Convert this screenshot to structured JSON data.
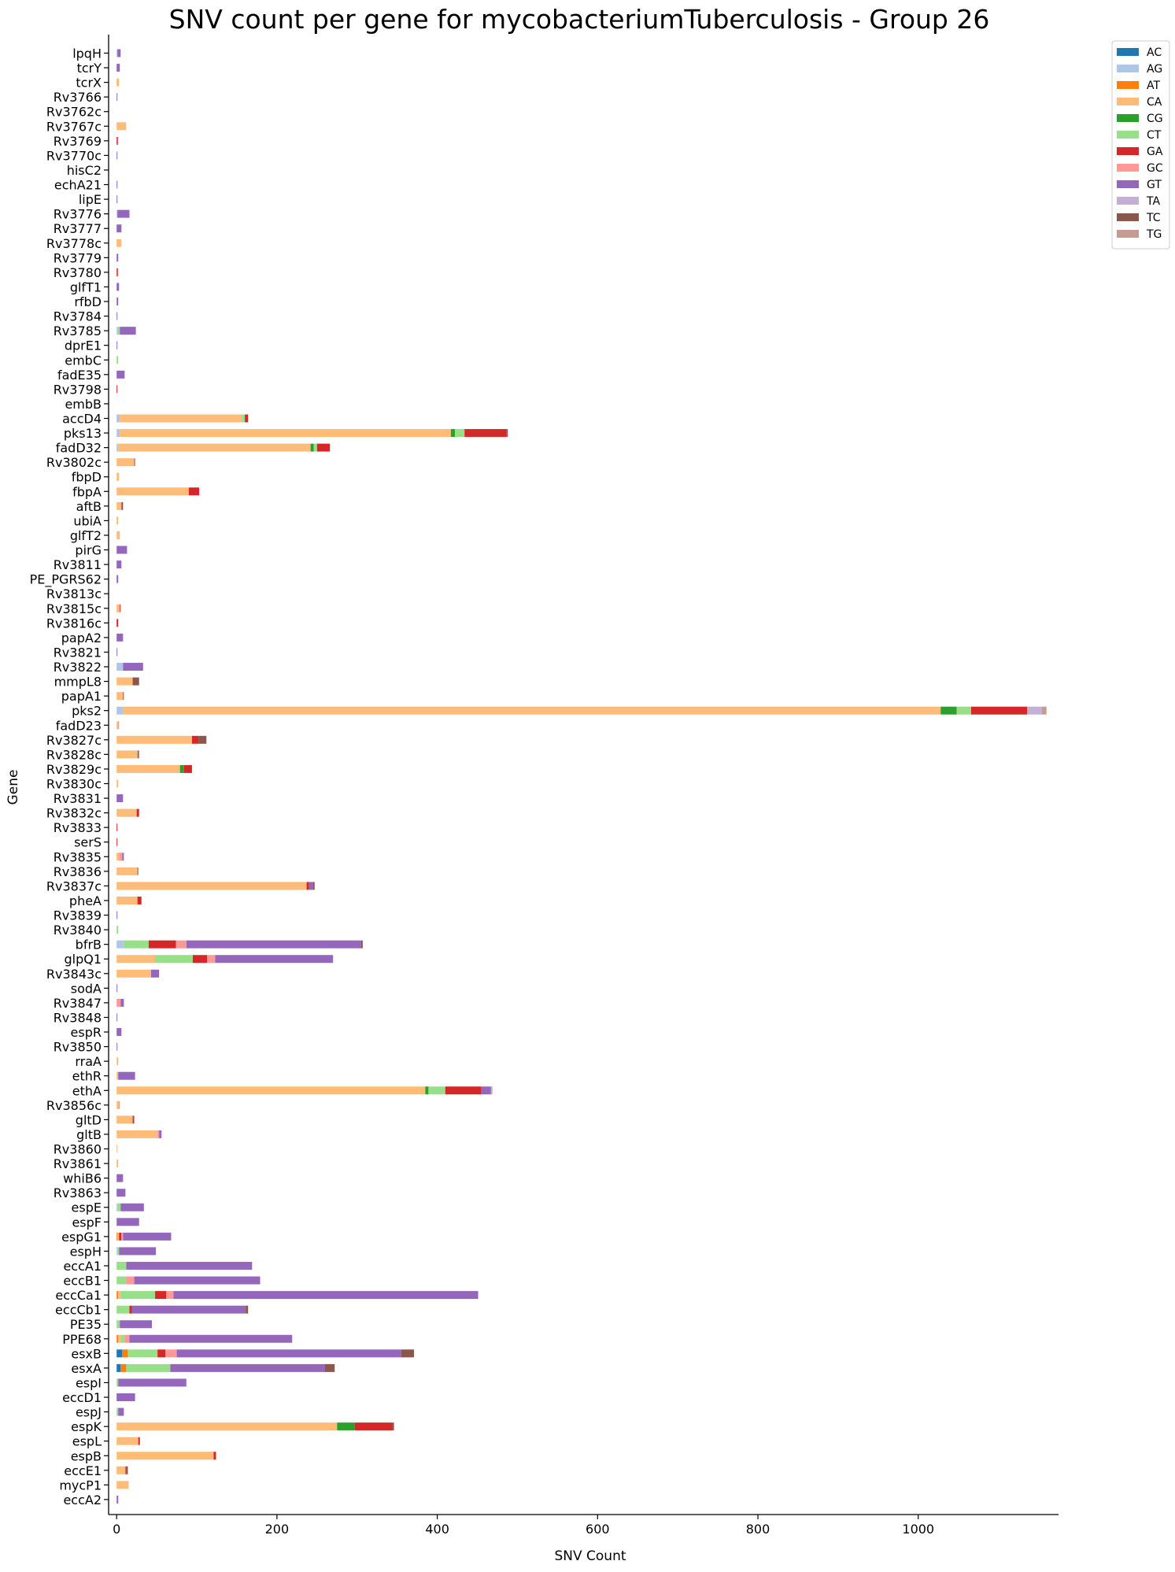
{
  "chart_data": {
    "type": "bar",
    "orientation": "horizontal",
    "stacked": true,
    "title": "SNV count per gene for mycobacteriumTuberculosis - Group 26",
    "xlabel": "SNV Count",
    "ylabel": "Gene",
    "xlim": [
      -10,
      1175
    ],
    "xticks": [
      0,
      200,
      400,
      600,
      800,
      1000
    ],
    "grid": false,
    "legend_position": "top-right-outside",
    "categories": [
      "lpqH",
      "tcrY",
      "tcrX",
      "Rv3766",
      "Rv3762c",
      "Rv3767c",
      "Rv3769",
      "Rv3770c",
      "hisC2",
      "echA21",
      "lipE",
      "Rv3776",
      "Rv3777",
      "Rv3778c",
      "Rv3779",
      "Rv3780",
      "glfT1",
      "rfbD",
      "Rv3784",
      "Rv3785",
      "dprE1",
      "embC",
      "fadE35",
      "Rv3798",
      "embB",
      "accD4",
      "pks13",
      "fadD32",
      "Rv3802c",
      "fbpD",
      "fbpA",
      "aftB",
      "ubiA",
      "glfT2",
      "pirG",
      "Rv3811",
      "PE_PGRS62",
      "Rv3813c",
      "Rv3815c",
      "Rv3816c",
      "papA2",
      "Rv3821",
      "Rv3822",
      "mmpL8",
      "papA1",
      "pks2",
      "fadD23",
      "Rv3827c",
      "Rv3828c",
      "Rv3829c",
      "Rv3830c",
      "Rv3831",
      "Rv3832c",
      "Rv3833",
      "serS",
      "Rv3835",
      "Rv3836",
      "Rv3837c",
      "pheA",
      "Rv3839",
      "Rv3840",
      "bfrB",
      "glpQ1",
      "Rv3843c",
      "sodA",
      "Rv3847",
      "Rv3848",
      "espR",
      "Rv3850",
      "rraA",
      "ethR",
      "ethA",
      "Rv3856c",
      "gltD",
      "gltB",
      "Rv3860",
      "Rv3861",
      "whiB6",
      "Rv3863",
      "espE",
      "espF",
      "espG1",
      "espH",
      "eccA1",
      "eccB1",
      "eccCa1",
      "eccCb1",
      "PE35",
      "PPE68",
      "esxB",
      "esxA",
      "espI",
      "eccD1",
      "espJ",
      "espK",
      "espL",
      "espB",
      "eccE1",
      "mycP1",
      "eccA2"
    ],
    "series": [
      {
        "name": "AC",
        "color": "#1f77b4",
        "values": [
          0,
          0,
          0,
          0,
          0,
          0,
          0,
          0,
          0,
          0,
          0,
          0,
          0,
          0,
          0,
          0,
          0,
          0,
          0,
          0,
          0,
          0,
          0,
          0,
          0,
          0,
          0,
          0,
          0,
          0,
          0,
          0,
          0,
          0,
          0,
          0,
          0,
          0,
          0,
          0,
          0,
          0,
          0,
          0,
          0,
          0,
          0,
          0,
          0,
          0,
          0,
          0,
          0,
          0,
          0,
          0,
          0,
          0,
          0,
          0,
          0,
          0,
          0,
          0,
          0,
          0,
          0,
          0,
          0,
          0,
          0,
          0,
          0,
          0,
          0,
          0,
          0,
          0,
          0,
          0,
          0,
          0,
          0,
          0,
          0,
          0,
          0,
          0,
          0,
          7,
          5,
          0,
          0,
          0,
          0,
          0,
          0,
          0,
          0,
          0
        ]
      },
      {
        "name": "AG",
        "color": "#aec7e8",
        "values": [
          1,
          0,
          0,
          0,
          0,
          0,
          0,
          0,
          0,
          0,
          0,
          1,
          0,
          0,
          0,
          0,
          0,
          0,
          0,
          1,
          0,
          0,
          0,
          0,
          0,
          4,
          4,
          2,
          0,
          0,
          0,
          0,
          0,
          0,
          0,
          0,
          0,
          0,
          0,
          0,
          0,
          0,
          8,
          0,
          0,
          8,
          0,
          0,
          0,
          0,
          0,
          0,
          0,
          0,
          0,
          0,
          0,
          0,
          0,
          0,
          0,
          9,
          0,
          0,
          0,
          0,
          0,
          0,
          0,
          0,
          0,
          0,
          0,
          0,
          0,
          0,
          0,
          0,
          0,
          1,
          0,
          0,
          1,
          0,
          0,
          0,
          0,
          0,
          0,
          0,
          0,
          0,
          0,
          0,
          0,
          0,
          0,
          0,
          0,
          0
        ]
      },
      {
        "name": "AT",
        "color": "#ff7f0e",
        "values": [
          0,
          0,
          0,
          0,
          0,
          0,
          0,
          0,
          0,
          0,
          0,
          0,
          0,
          0,
          0,
          0,
          0,
          0,
          0,
          0,
          0,
          0,
          0,
          0,
          0,
          0,
          0,
          0,
          0,
          0,
          0,
          0,
          0,
          0,
          0,
          0,
          0,
          0,
          0,
          0,
          0,
          0,
          0,
          0,
          0,
          0,
          0,
          0,
          0,
          0,
          0,
          0,
          0,
          0,
          0,
          0,
          0,
          0,
          0,
          0,
          0,
          0,
          0,
          0,
          0,
          0,
          0,
          0,
          0,
          0,
          0,
          0,
          0,
          0,
          0,
          0,
          0,
          0,
          0,
          0,
          0,
          1,
          0,
          0,
          0,
          2,
          0,
          0,
          2,
          7,
          7,
          0,
          0,
          0,
          0,
          0,
          0,
          0,
          0,
          0
        ]
      },
      {
        "name": "CA",
        "color": "#ffbb78",
        "values": [
          0,
          0,
          3,
          0,
          0,
          12,
          0,
          0,
          0,
          0,
          0,
          0,
          0,
          6,
          0,
          0,
          0,
          0,
          0,
          0,
          0,
          0,
          0,
          0,
          0,
          152,
          413,
          240,
          22,
          3,
          90,
          6,
          2,
          4,
          0,
          0,
          0,
          0,
          4,
          0,
          0,
          0,
          0,
          20,
          8,
          1020,
          2,
          94,
          26,
          79,
          2,
          0,
          25,
          0,
          0,
          3,
          26,
          237,
          26,
          0,
          0,
          0,
          48,
          43,
          0,
          0,
          0,
          0,
          0,
          2,
          2,
          385,
          3,
          20,
          51,
          1,
          2,
          0,
          0,
          0,
          0,
          2,
          0,
          0,
          0,
          3,
          0,
          0,
          3,
          0,
          0,
          0,
          0,
          0,
          275,
          27,
          121,
          11,
          15,
          0
        ]
      },
      {
        "name": "CG",
        "color": "#2ca02c",
        "values": [
          0,
          0,
          0,
          0,
          0,
          0,
          0,
          0,
          0,
          0,
          0,
          0,
          0,
          0,
          0,
          0,
          0,
          0,
          0,
          0,
          0,
          0,
          0,
          0,
          0,
          0,
          5,
          4,
          0,
          0,
          0,
          0,
          0,
          0,
          0,
          0,
          0,
          0,
          0,
          0,
          0,
          0,
          0,
          0,
          0,
          20,
          0,
          0,
          1,
          5,
          0,
          0,
          0,
          0,
          0,
          0,
          0,
          0,
          0,
          0,
          0,
          0,
          0,
          0,
          0,
          0,
          0,
          0,
          0,
          0,
          0,
          4,
          0,
          0,
          0,
          0,
          0,
          0,
          0,
          0,
          0,
          0,
          0,
          0,
          0,
          0,
          0,
          0,
          0,
          0,
          0,
          0,
          0,
          0,
          22,
          0,
          0,
          0,
          0,
          0
        ]
      },
      {
        "name": "CT",
        "color": "#98df8a",
        "values": [
          0,
          0,
          0,
          0,
          0,
          0,
          0,
          0,
          0,
          0,
          0,
          0,
          0,
          0,
          0,
          0,
          0,
          0,
          0,
          3,
          0,
          2,
          0,
          0,
          0,
          4,
          12,
          4,
          0,
          0,
          0,
          0,
          0,
          0,
          0,
          0,
          0,
          0,
          0,
          0,
          0,
          0,
          0,
          0,
          0,
          18,
          0,
          0,
          0,
          0,
          0,
          0,
          0,
          0,
          0,
          0,
          0,
          0,
          0,
          0,
          2,
          31,
          47,
          0,
          0,
          0,
          0,
          0,
          0,
          0,
          0,
          21,
          0,
          0,
          0,
          0,
          0,
          0,
          0,
          4,
          0,
          0,
          2,
          12,
          12,
          43,
          16,
          4,
          5,
          37,
          55,
          2,
          0,
          2,
          0,
          0,
          0,
          0,
          0,
          0
        ]
      },
      {
        "name": "GA",
        "color": "#d62728",
        "values": [
          0,
          0,
          0,
          0,
          0,
          0,
          1,
          0,
          0,
          0,
          0,
          0,
          0,
          0,
          0,
          1,
          0,
          0,
          0,
          0,
          0,
          0,
          0,
          1,
          0,
          4,
          52,
          16,
          0,
          0,
          13,
          0,
          0,
          0,
          0,
          0,
          0,
          0,
          1,
          2,
          0,
          0,
          0,
          0,
          0,
          70,
          0,
          8,
          0,
          10,
          0,
          0,
          3,
          1,
          1,
          0,
          0,
          3,
          5,
          0,
          0,
          34,
          18,
          0,
          0,
          0,
          0,
          0,
          0,
          0,
          0,
          45,
          0,
          1,
          0,
          0,
          0,
          0,
          0,
          0,
          0,
          3,
          0,
          0,
          0,
          14,
          3,
          0,
          0,
          10,
          0,
          0,
          0,
          0,
          47,
          2,
          3,
          1,
          0,
          0
        ]
      },
      {
        "name": "GC",
        "color": "#ff9896",
        "values": [
          0,
          0,
          0,
          0,
          0,
          0,
          0,
          0,
          0,
          0,
          0,
          0,
          0,
          0,
          0,
          0,
          0,
          0,
          0,
          0,
          0,
          0,
          0,
          0,
          0,
          0,
          0,
          0,
          0,
          0,
          0,
          0,
          0,
          0,
          0,
          0,
          0,
          0,
          0,
          0,
          0,
          0,
          0,
          0,
          0,
          0,
          0,
          0,
          0,
          0,
          0,
          0,
          0,
          0,
          0,
          4,
          0,
          0,
          0,
          0,
          0,
          13,
          10,
          0,
          0,
          5,
          0,
          0,
          0,
          0,
          0,
          0,
          0,
          0,
          2,
          0,
          0,
          0,
          0,
          0,
          0,
          2,
          0,
          0,
          10,
          9,
          0,
          0,
          6,
          14,
          0,
          0,
          0,
          0,
          0,
          0,
          0,
          0,
          0,
          0
        ]
      },
      {
        "name": "GT",
        "color": "#9467bd",
        "values": [
          4,
          4,
          0,
          1,
          0,
          0,
          1,
          1,
          0,
          1,
          1,
          15,
          6,
          0,
          2,
          1,
          3,
          2,
          1,
          20,
          1,
          0,
          10,
          0,
          0,
          0,
          0,
          0,
          0,
          0,
          0,
          0,
          0,
          0,
          13,
          6,
          2,
          0,
          0,
          0,
          8,
          1,
          25,
          0,
          0,
          0,
          0,
          0,
          0,
          0,
          0,
          8,
          0,
          0,
          0,
          2,
          0,
          5,
          0,
          1,
          0,
          218,
          147,
          10,
          1,
          4,
          1,
          6,
          1,
          0,
          21,
          12,
          0,
          0,
          3,
          0,
          0,
          8,
          11,
          29,
          28,
          60,
          46,
          157,
          157,
          380,
          142,
          40,
          203,
          280,
          193,
          85,
          23,
          7,
          0,
          0,
          0,
          0,
          0,
          2
        ]
      },
      {
        "name": "TA",
        "color": "#c5b0d5",
        "values": [
          0,
          0,
          0,
          0,
          0,
          0,
          0,
          0,
          0,
          0,
          0,
          0,
          0,
          0,
          0,
          0,
          0,
          0,
          0,
          0,
          0,
          0,
          0,
          0,
          0,
          0,
          0,
          0,
          0,
          0,
          0,
          0,
          0,
          0,
          0,
          0,
          0,
          0,
          0,
          0,
          0,
          0,
          0,
          0,
          0,
          18,
          0,
          0,
          0,
          0,
          0,
          0,
          0,
          0,
          0,
          0,
          0,
          0,
          0,
          0,
          0,
          0,
          0,
          0,
          0,
          0,
          0,
          0,
          0,
          0,
          0,
          2,
          0,
          0,
          0,
          0,
          0,
          0,
          0,
          0,
          0,
          0,
          0,
          0,
          0,
          0,
          0,
          0,
          0,
          0,
          0,
          0,
          0,
          0,
          0,
          0,
          0,
          0,
          0,
          0
        ]
      },
      {
        "name": "TC",
        "color": "#8c564b",
        "values": [
          0,
          0,
          0,
          0,
          0,
          0,
          0,
          0,
          0,
          0,
          0,
          0,
          0,
          0,
          0,
          0,
          0,
          0,
          0,
          0,
          0,
          0,
          0,
          0,
          0,
          0,
          2,
          0,
          1,
          0,
          0,
          2,
          0,
          0,
          0,
          0,
          0,
          0,
          0,
          0,
          0,
          0,
          0,
          8,
          1,
          0,
          0,
          10,
          1,
          0,
          0,
          0,
          0,
          0,
          0,
          0,
          1,
          2,
          0,
          0,
          0,
          2,
          0,
          0,
          0,
          0,
          0,
          0,
          0,
          0,
          0,
          0,
          0,
          1,
          0,
          0,
          0,
          0,
          0,
          0,
          0,
          0,
          0,
          0,
          0,
          0,
          3,
          0,
          0,
          16,
          12,
          0,
          0,
          0,
          2,
          0,
          0,
          2,
          0,
          0
        ]
      },
      {
        "name": "TG",
        "color": "#c49c94",
        "values": [
          0,
          0,
          0,
          0,
          0,
          0,
          0,
          0,
          0,
          0,
          0,
          0,
          0,
          0,
          0,
          0,
          0,
          0,
          0,
          0,
          0,
          0,
          0,
          0,
          0,
          0,
          0,
          0,
          0,
          0,
          0,
          0,
          0,
          0,
          0,
          0,
          0,
          0,
          0,
          0,
          0,
          0,
          0,
          0,
          0,
          6,
          1,
          0,
          0,
          0,
          0,
          0,
          0,
          0,
          0,
          0,
          0,
          0,
          0,
          0,
          0,
          0,
          0,
          0,
          0,
          0,
          0,
          0,
          0,
          0,
          0,
          0,
          1,
          0,
          0,
          0,
          0,
          0,
          0,
          0,
          0,
          0,
          0,
          0,
          0,
          0,
          0,
          0,
          0,
          0,
          0,
          0,
          0,
          0,
          0,
          0,
          0,
          0,
          0,
          0
        ]
      }
    ]
  }
}
